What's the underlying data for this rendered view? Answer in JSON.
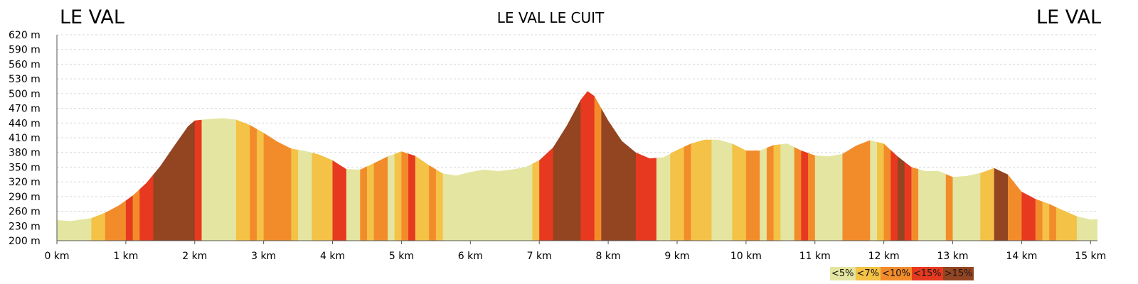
{
  "header": {
    "start_label": "LE VAL",
    "end_label": "LE VAL"
  },
  "chart_data": {
    "type": "area",
    "title": "LE VAL LE CUIT",
    "xlabel": "",
    "ylabel": "",
    "x_unit": "km",
    "y_unit": "m",
    "xlim": [
      0,
      15.1
    ],
    "ylim": [
      200,
      620
    ],
    "x_ticks": [
      "0 km",
      "1 km",
      "2 km",
      "3 km",
      "4 km",
      "5 km",
      "6 km",
      "7 km",
      "8 km",
      "9 km",
      "10 km",
      "11 km",
      "12 km",
      "13 km",
      "14 km",
      "15 km"
    ],
    "y_ticks": [
      "200 m",
      "230 m",
      "260 m",
      "290 m",
      "320 m",
      "350 m",
      "380 m",
      "410 m",
      "440 m",
      "470 m",
      "500 m",
      "530 m",
      "560 m",
      "590 m",
      "620 m"
    ],
    "grid": true,
    "profile": {
      "distance_km": [
        0,
        0.2,
        0.5,
        0.7,
        0.9,
        1.1,
        1.3,
        1.5,
        1.7,
        1.9,
        2.0,
        2.2,
        2.4,
        2.6,
        2.8,
        3.0,
        3.2,
        3.4,
        3.6,
        3.8,
        4.0,
        4.2,
        4.4,
        4.6,
        4.8,
        5.0,
        5.2,
        5.4,
        5.6,
        5.8,
        6.0,
        6.2,
        6.4,
        6.6,
        6.8,
        7.0,
        7.2,
        7.4,
        7.6,
        7.7,
        7.8,
        8.0,
        8.2,
        8.4,
        8.6,
        8.8,
        9.0,
        9.2,
        9.4,
        9.6,
        9.8,
        10.0,
        10.2,
        10.4,
        10.6,
        10.8,
        11.0,
        11.2,
        11.4,
        11.6,
        11.8,
        12.0,
        12.2,
        12.4,
        12.6,
        12.8,
        13.0,
        13.2,
        13.4,
        13.6,
        13.8,
        14.0,
        14.2,
        14.4,
        14.6,
        14.8,
        15.0,
        15.1
      ],
      "elevation_m": [
        242,
        240,
        246,
        257,
        272,
        292,
        318,
        352,
        393,
        433,
        445,
        448,
        450,
        447,
        436,
        420,
        402,
        388,
        383,
        376,
        364,
        346,
        345,
        358,
        372,
        382,
        373,
        354,
        337,
        333,
        340,
        345,
        342,
        345,
        350,
        364,
        390,
        435,
        487,
        505,
        495,
        445,
        403,
        380,
        368,
        370,
        385,
        398,
        406,
        406,
        398,
        384,
        384,
        395,
        398,
        384,
        374,
        372,
        377,
        394,
        405,
        398,
        372,
        350,
        342,
        342,
        330,
        332,
        338,
        348,
        335,
        300,
        285,
        275,
        262,
        250,
        243,
        244
      ]
    },
    "segments": [
      {
        "from_km": 0.0,
        "to_km": 0.5,
        "class": "<5%"
      },
      {
        "from_km": 0.5,
        "to_km": 0.7,
        "class": "<7%"
      },
      {
        "from_km": 0.7,
        "to_km": 1.0,
        "class": "<10%"
      },
      {
        "from_km": 1.0,
        "to_km": 1.1,
        "class": "<15%"
      },
      {
        "from_km": 1.1,
        "to_km": 1.2,
        "class": "<10%"
      },
      {
        "from_km": 1.2,
        "to_km": 1.4,
        "class": "<15%"
      },
      {
        "from_km": 1.4,
        "to_km": 2.0,
        "class": ">15%"
      },
      {
        "from_km": 2.0,
        "to_km": 2.1,
        "class": "<15%"
      },
      {
        "from_km": 2.1,
        "to_km": 2.6,
        "class": "<5%"
      },
      {
        "from_km": 2.6,
        "to_km": 2.8,
        "class": "<7%"
      },
      {
        "from_km": 2.8,
        "to_km": 2.9,
        "class": "<10%"
      },
      {
        "from_km": 2.9,
        "to_km": 3.0,
        "class": "<7%"
      },
      {
        "from_km": 3.0,
        "to_km": 3.4,
        "class": "<10%"
      },
      {
        "from_km": 3.4,
        "to_km": 3.5,
        "class": "<7%"
      },
      {
        "from_km": 3.5,
        "to_km": 3.7,
        "class": "<5%"
      },
      {
        "from_km": 3.7,
        "to_km": 4.0,
        "class": "<7%"
      },
      {
        "from_km": 4.0,
        "to_km": 4.2,
        "class": "<15%"
      },
      {
        "from_km": 4.2,
        "to_km": 4.4,
        "class": "<5%"
      },
      {
        "from_km": 4.4,
        "to_km": 4.5,
        "class": "<10%"
      },
      {
        "from_km": 4.5,
        "to_km": 4.6,
        "class": "<7%"
      },
      {
        "from_km": 4.6,
        "to_km": 4.8,
        "class": "<10%"
      },
      {
        "from_km": 4.8,
        "to_km": 4.9,
        "class": "<5%"
      },
      {
        "from_km": 4.9,
        "to_km": 5.0,
        "class": "<7%"
      },
      {
        "from_km": 5.0,
        "to_km": 5.1,
        "class": "<10%"
      },
      {
        "from_km": 5.1,
        "to_km": 5.2,
        "class": "<15%"
      },
      {
        "from_km": 5.2,
        "to_km": 5.4,
        "class": "<7%"
      },
      {
        "from_km": 5.4,
        "to_km": 5.5,
        "class": "<10%"
      },
      {
        "from_km": 5.5,
        "to_km": 5.6,
        "class": "<7%"
      },
      {
        "from_km": 5.6,
        "to_km": 6.9,
        "class": "<5%"
      },
      {
        "from_km": 6.9,
        "to_km": 7.0,
        "class": "<7%"
      },
      {
        "from_km": 7.0,
        "to_km": 7.2,
        "class": "<15%"
      },
      {
        "from_km": 7.2,
        "to_km": 7.6,
        "class": ">15%"
      },
      {
        "from_km": 7.6,
        "to_km": 7.8,
        "class": "<15%"
      },
      {
        "from_km": 7.8,
        "to_km": 7.9,
        "class": "<10%"
      },
      {
        "from_km": 7.9,
        "to_km": 8.4,
        "class": ">15%"
      },
      {
        "from_km": 8.4,
        "to_km": 8.7,
        "class": "<15%"
      },
      {
        "from_km": 8.7,
        "to_km": 8.9,
        "class": "<5%"
      },
      {
        "from_km": 8.9,
        "to_km": 9.1,
        "class": "<7%"
      },
      {
        "from_km": 9.1,
        "to_km": 9.2,
        "class": "<10%"
      },
      {
        "from_km": 9.2,
        "to_km": 9.5,
        "class": "<7%"
      },
      {
        "from_km": 9.5,
        "to_km": 9.8,
        "class": "<5%"
      },
      {
        "from_km": 9.8,
        "to_km": 10.0,
        "class": "<7%"
      },
      {
        "from_km": 10.0,
        "to_km": 10.2,
        "class": "<10%"
      },
      {
        "from_km": 10.2,
        "to_km": 10.3,
        "class": "<5%"
      },
      {
        "from_km": 10.3,
        "to_km": 10.4,
        "class": "<10%"
      },
      {
        "from_km": 10.4,
        "to_km": 10.5,
        "class": "<7%"
      },
      {
        "from_km": 10.5,
        "to_km": 10.7,
        "class": "<5%"
      },
      {
        "from_km": 10.7,
        "to_km": 10.8,
        "class": "<10%"
      },
      {
        "from_km": 10.8,
        "to_km": 10.9,
        "class": "<15%"
      },
      {
        "from_km": 10.9,
        "to_km": 11.0,
        "class": "<10%"
      },
      {
        "from_km": 11.0,
        "to_km": 11.4,
        "class": "<5%"
      },
      {
        "from_km": 11.4,
        "to_km": 11.8,
        "class": "<10%"
      },
      {
        "from_km": 11.8,
        "to_km": 11.9,
        "class": "<5%"
      },
      {
        "from_km": 11.9,
        "to_km": 12.0,
        "class": "<7%"
      },
      {
        "from_km": 12.0,
        "to_km": 12.1,
        "class": "<10%"
      },
      {
        "from_km": 12.1,
        "to_km": 12.2,
        "class": "<15%"
      },
      {
        "from_km": 12.2,
        "to_km": 12.3,
        "class": ">15%"
      },
      {
        "from_km": 12.3,
        "to_km": 12.4,
        "class": "<15%"
      },
      {
        "from_km": 12.4,
        "to_km": 12.5,
        "class": "<10%"
      },
      {
        "from_km": 12.5,
        "to_km": 12.9,
        "class": "<5%"
      },
      {
        "from_km": 12.9,
        "to_km": 13.0,
        "class": "<10%"
      },
      {
        "from_km": 13.0,
        "to_km": 13.4,
        "class": "<5%"
      },
      {
        "from_km": 13.4,
        "to_km": 13.6,
        "class": "<7%"
      },
      {
        "from_km": 13.6,
        "to_km": 13.8,
        "class": ">15%"
      },
      {
        "from_km": 13.8,
        "to_km": 14.0,
        "class": "<10%"
      },
      {
        "from_km": 14.0,
        "to_km": 14.2,
        "class": "<15%"
      },
      {
        "from_km": 14.2,
        "to_km": 14.3,
        "class": "<10%"
      },
      {
        "from_km": 14.3,
        "to_km": 14.4,
        "class": "<7%"
      },
      {
        "from_km": 14.4,
        "to_km": 14.5,
        "class": "<10%"
      },
      {
        "from_km": 14.5,
        "to_km": 14.6,
        "class": "<7%"
      },
      {
        "from_km": 14.6,
        "to_km": 14.8,
        "class": "<7%"
      },
      {
        "from_km": 14.8,
        "to_km": 15.1,
        "class": "<5%"
      }
    ],
    "legend": {
      "placement": "bottom-right",
      "entries": [
        {
          "label": "<5%",
          "color": "#e4e5a0"
        },
        {
          "label": "<7%",
          "color": "#f3c246"
        },
        {
          "label": "<10%",
          "color": "#f28c2b"
        },
        {
          "label": "<15%",
          "color": "#e6391f"
        },
        {
          "label": ">15%",
          "color": "#934421"
        }
      ]
    }
  }
}
